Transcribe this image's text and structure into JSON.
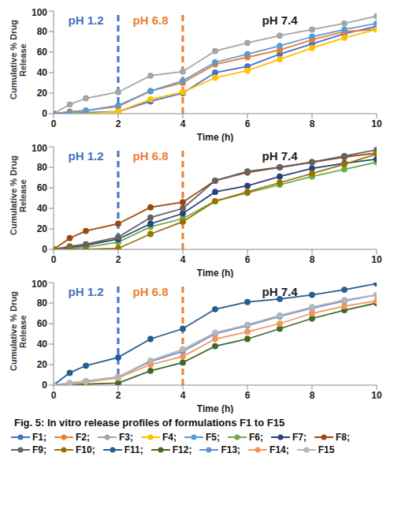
{
  "caption": "Fig. 5: In vitro release profiles of formulations F1 to F15",
  "chart_data": [
    {
      "type": "line",
      "xlabel": "Time (h)",
      "ylabel": "Cumulative % Drug Release",
      "xlim": [
        0,
        10
      ],
      "xticks": [
        0,
        2,
        4,
        6,
        8,
        10
      ],
      "ylim": [
        0,
        100
      ],
      "yticks": [
        0,
        20,
        40,
        60,
        80,
        100
      ],
      "grid": false,
      "marker": "circle",
      "phases": [
        {
          "label": "pH 1.2",
          "from": 0,
          "to": 2,
          "color": "#4472c4"
        },
        {
          "label": "pH 6.8",
          "from": 2,
          "to": 4,
          "color": "#ed7d31"
        },
        {
          "label": "pH 7.4",
          "from": 4,
          "to": 10,
          "color": "#222222"
        }
      ],
      "x": [
        0,
        0.5,
        1,
        2,
        3,
        4,
        5,
        6,
        7,
        8,
        9,
        10
      ],
      "series": [
        {
          "name": "F1;",
          "color": "#4472c4",
          "values": [
            0,
            0,
            1,
            2,
            12,
            20,
            40,
            46,
            58,
            68,
            78,
            85
          ]
        },
        {
          "name": "F2;",
          "color": "#ed7d31",
          "values": [
            0,
            2,
            3,
            7,
            22,
            30,
            48,
            55,
            62,
            72,
            80,
            82
          ]
        },
        {
          "name": "F3;",
          "color": "#a5a5a5",
          "values": [
            0,
            9,
            15,
            21,
            37,
            41,
            61,
            69,
            76,
            82,
            88,
            95
          ]
        },
        {
          "name": "F4;",
          "color": "#ffc000",
          "values": [
            0,
            0,
            0,
            2,
            14,
            21,
            35,
            42,
            53,
            64,
            74,
            82
          ]
        },
        {
          "name": "F5;",
          "color": "#5b9bd5",
          "values": [
            0,
            1,
            3,
            8,
            22,
            32,
            50,
            58,
            66,
            75,
            82,
            88
          ]
        }
      ]
    },
    {
      "type": "line",
      "xlabel": "Time (h)",
      "ylabel": "Cumulative % Drug Release",
      "xlim": [
        0,
        10
      ],
      "xticks": [
        0,
        2,
        4,
        6,
        8,
        10
      ],
      "ylim": [
        0,
        100
      ],
      "yticks": [
        0,
        20,
        40,
        60,
        80,
        100
      ],
      "grid": false,
      "marker": "circle",
      "phases": [
        {
          "label": "pH 1.2",
          "from": 0,
          "to": 2,
          "color": "#4472c4"
        },
        {
          "label": "pH 6.8",
          "from": 2,
          "to": 4,
          "color": "#ed7d31"
        },
        {
          "label": "pH 7.4",
          "from": 4,
          "to": 10,
          "color": "#222222"
        }
      ],
      "x": [
        0,
        0.5,
        1,
        2,
        3,
        4,
        5,
        6,
        7,
        8,
        9,
        10
      ],
      "series": [
        {
          "name": "F6;",
          "color": "#70ad47",
          "values": [
            0,
            1,
            2,
            7,
            22,
            30,
            47,
            55,
            63,
            71,
            78,
            85
          ]
        },
        {
          "name": "F7;",
          "color": "#264478",
          "values": [
            0,
            2,
            4,
            10,
            25,
            35,
            56,
            62,
            71,
            79,
            84,
            88
          ]
        },
        {
          "name": "F8;",
          "color": "#9e480e",
          "values": [
            0,
            11,
            18,
            25,
            41,
            46,
            67,
            75,
            80,
            85,
            90,
            94
          ]
        },
        {
          "name": "F9;",
          "color": "#636363",
          "values": [
            0,
            3,
            5,
            12,
            31,
            40,
            67,
            76,
            80,
            85,
            91,
            97
          ]
        },
        {
          "name": "F10;",
          "color": "#997300",
          "values": [
            0,
            0,
            0,
            1,
            15,
            27,
            47,
            56,
            65,
            74,
            83,
            93
          ]
        }
      ]
    },
    {
      "type": "line",
      "xlabel": "Time (h)",
      "ylabel": "Cumulative % Drug Release",
      "xlim": [
        0,
        10
      ],
      "xticks": [
        0,
        2,
        4,
        6,
        8,
        10
      ],
      "ylim": [
        0,
        100
      ],
      "yticks": [
        0,
        20,
        40,
        60,
        80,
        100
      ],
      "grid": false,
      "marker": "circle",
      "phases": [
        {
          "label": "pH 1.2",
          "from": 0,
          "to": 2,
          "color": "#4472c4"
        },
        {
          "label": "pH 6.8",
          "from": 2,
          "to": 4,
          "color": "#ed7d31"
        },
        {
          "label": "pH 7.4",
          "from": 4,
          "to": 10,
          "color": "#222222"
        }
      ],
      "x": [
        0,
        0.5,
        1,
        2,
        3,
        4,
        5,
        6,
        7,
        8,
        9,
        10
      ],
      "series": [
        {
          "name": "F11;",
          "color": "#255e91",
          "values": [
            0,
            12,
            19,
            27,
            45,
            55,
            74,
            81,
            84,
            88,
            93,
            99
          ]
        },
        {
          "name": "F12;",
          "color": "#43682b",
          "values": [
            0,
            0,
            1,
            2,
            14,
            22,
            38,
            45,
            55,
            65,
            73,
            80
          ]
        },
        {
          "name": "F13;",
          "color": "#698ed0",
          "values": [
            0,
            2,
            4,
            8,
            23,
            33,
            50,
            58,
            67,
            75,
            82,
            88
          ]
        },
        {
          "name": "F14;",
          "color": "#f1975a",
          "values": [
            0,
            1,
            3,
            7,
            20,
            28,
            45,
            52,
            60,
            70,
            77,
            82
          ]
        },
        {
          "name": "F15",
          "color": "#b7b7b7",
          "values": [
            0,
            2,
            4,
            8,
            24,
            35,
            51,
            59,
            68,
            76,
            83,
            88
          ]
        }
      ]
    }
  ]
}
